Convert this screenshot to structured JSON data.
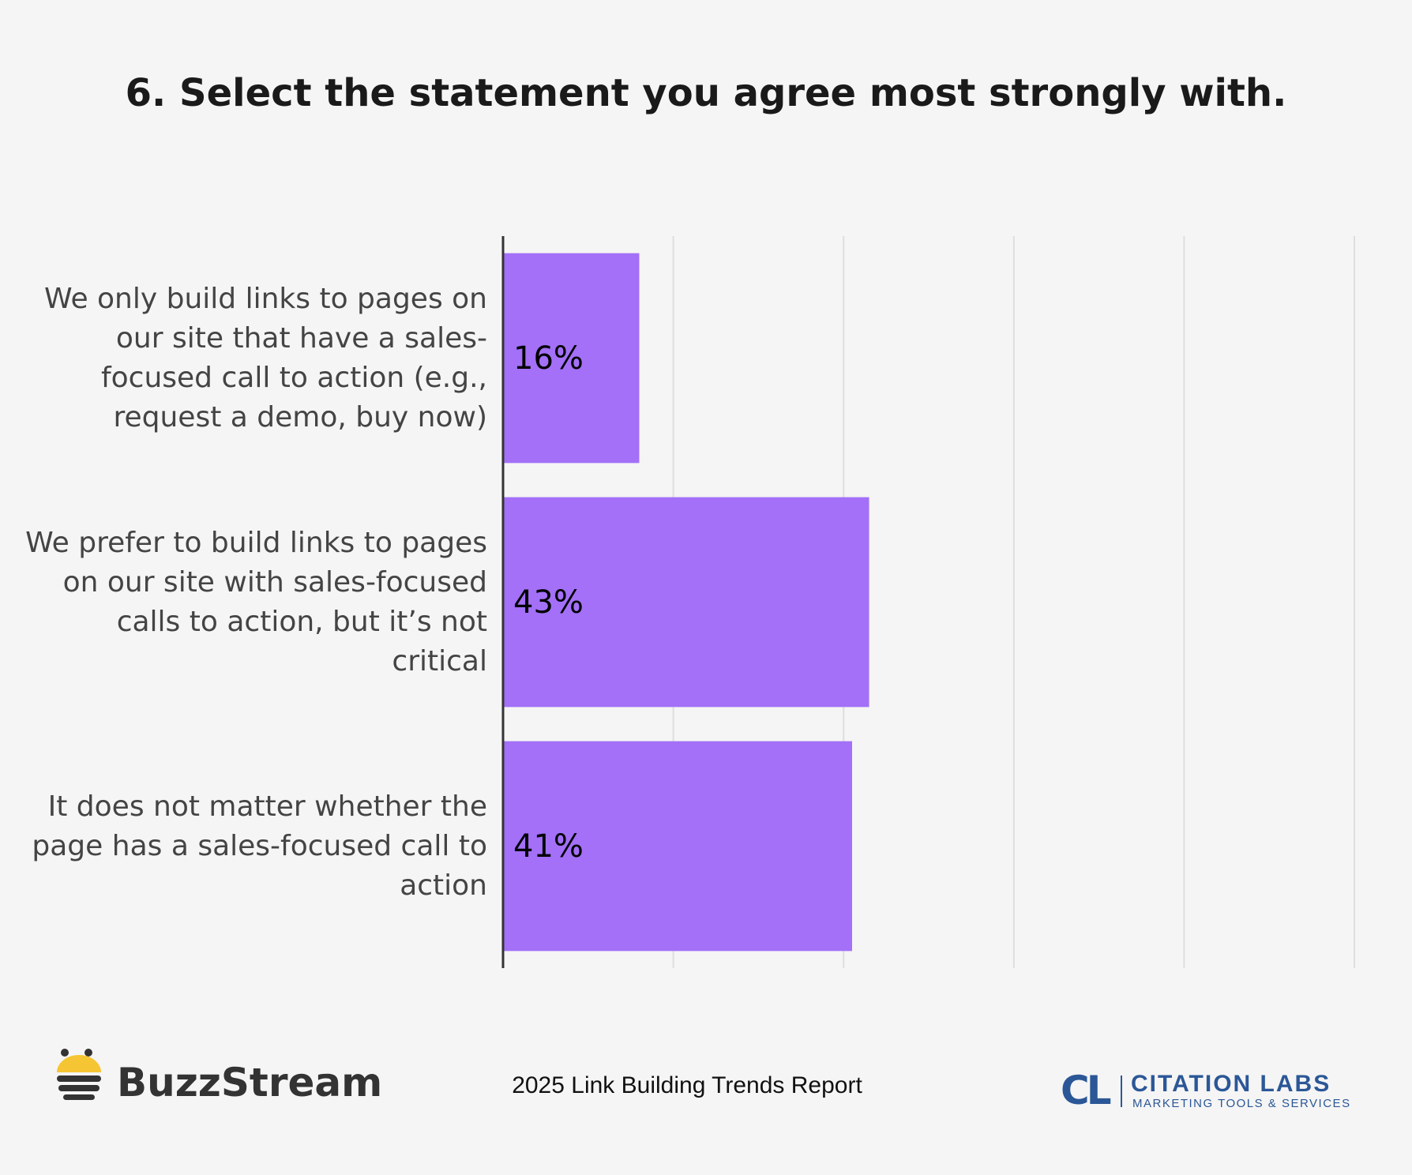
{
  "chart_data": {
    "type": "bar",
    "orientation": "horizontal",
    "title": "6. Select the statement you agree most strongly with.",
    "categories": [
      "We only build links to pages on our site that have a sales-focused call to action (e.g., request a demo, buy now)",
      "We prefer to build links to pages on our site with sales-focused calls to action, but it’s not critical",
      "It does not matter whether the page has a sales-focused call to action"
    ],
    "values": [
      16,
      43,
      41
    ],
    "value_labels": [
      "16%",
      "43%",
      "41%"
    ],
    "color": "#a370f7",
    "xlim": [
      0,
      100
    ],
    "xticks": [
      0,
      20,
      40,
      60,
      80,
      100
    ],
    "grid": true
  },
  "footer": {
    "left_logo": "BuzzStream",
    "center": "2025 Link Building Trends Report",
    "right_logo_mark": "CL",
    "right_logo": "CITATION LABS",
    "right_logo_tagline": "MARKETING TOOLS & SERVICES"
  }
}
